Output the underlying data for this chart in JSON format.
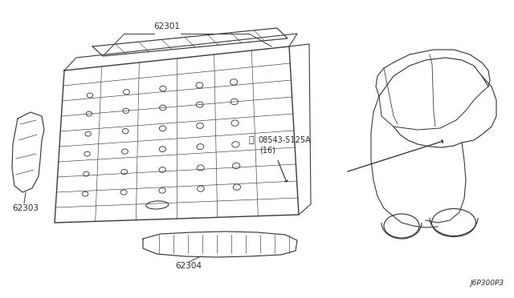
{
  "bg_color": "#ffffff",
  "line_color": "#3a3a3a",
  "text_color": "#2a2a2a",
  "diagram_code": "J6P300P3",
  "figsize": [
    6.4,
    3.72
  ],
  "dpi": 100
}
